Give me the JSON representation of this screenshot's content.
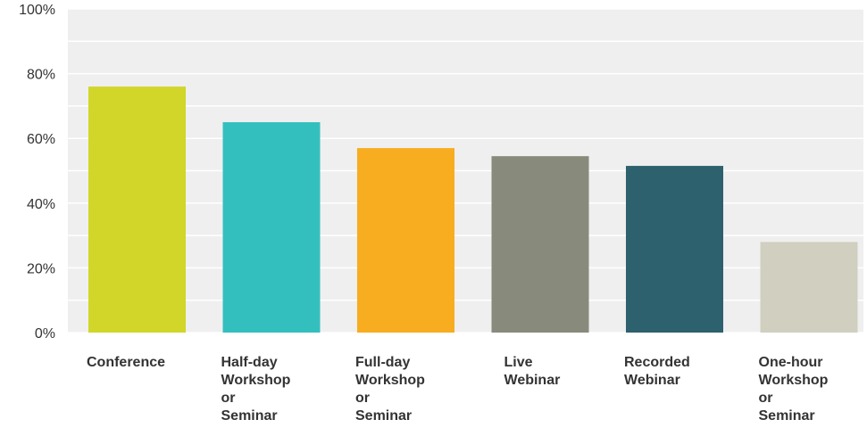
{
  "chart_data": {
    "type": "bar",
    "categories": [
      "Conference",
      "Half-day\nWorkshop\nor\nSeminar",
      "Full-day\nWorkshop\nor\nSeminar",
      "Live\nWebinar",
      "Recorded\nWebinar",
      "One-hour\nWorkshop\nor\nSeminar"
    ],
    "values": [
      76,
      65,
      57,
      54.5,
      51.5,
      28
    ],
    "colors": [
      "#d1d629",
      "#34bfbf",
      "#f7ad1f",
      "#888a7b",
      "#2e616e",
      "#d1d0c0"
    ],
    "yticks": [
      "0%",
      "20%",
      "40%",
      "60%",
      "80%",
      "100%"
    ],
    "ylim": [
      0,
      100
    ],
    "grid": true,
    "title": "",
    "xlabel": "",
    "ylabel": "",
    "plot_background": "#efefef"
  }
}
